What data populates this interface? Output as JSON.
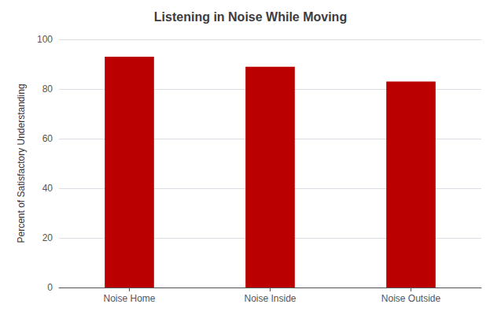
{
  "chart_data": {
    "type": "bar",
    "title": "Listening in Noise While Moving",
    "categories": [
      "Noise Home",
      "Noise Inside",
      "Noise Outside"
    ],
    "values": [
      93,
      89,
      83
    ],
    "color": "#BB0000",
    "ylabel": "Percent of Satisfactory Understanding",
    "ylim": [
      0,
      100
    ],
    "yticks": [
      0,
      20,
      40,
      60,
      80,
      100
    ],
    "grid": true
  }
}
